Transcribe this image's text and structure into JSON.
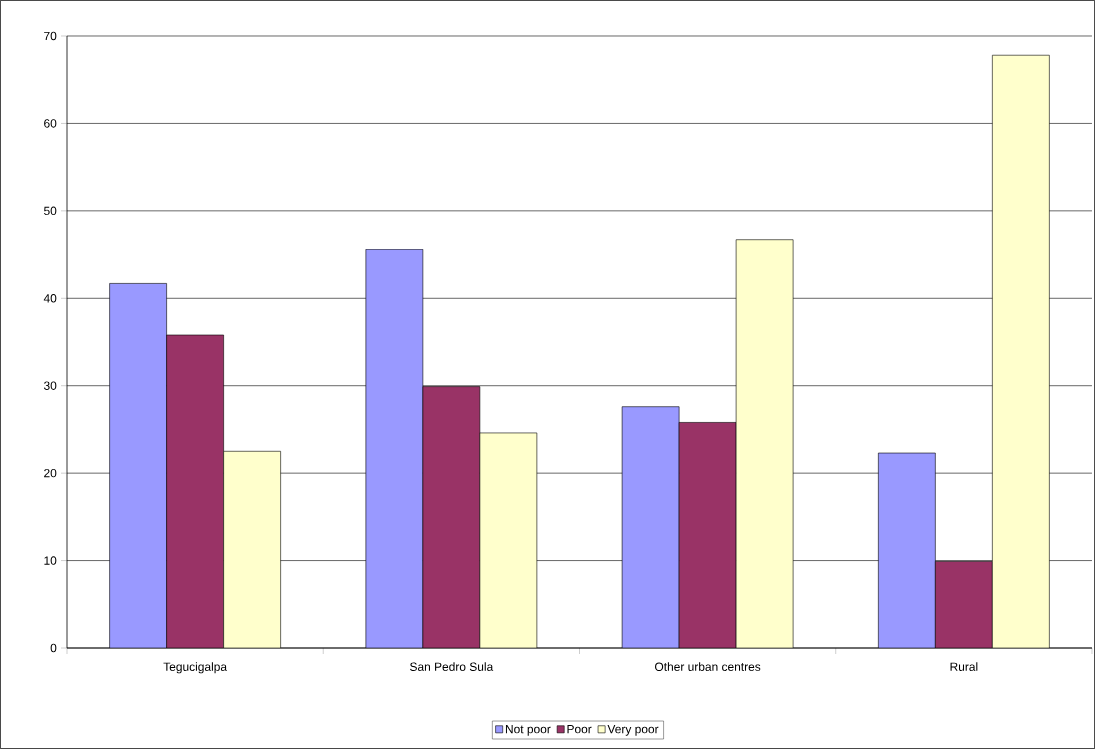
{
  "chart_data": {
    "type": "bar",
    "categories": [
      "Tegucigalpa",
      "San Pedro Sula",
      "Other urban centres",
      "Rural"
    ],
    "series": [
      {
        "name": "Not poor",
        "color": "#9999ff",
        "values": [
          41.7,
          45.6,
          27.6,
          22.3
        ]
      },
      {
        "name": "Poor",
        "color": "#993366",
        "values": [
          35.8,
          29.9,
          25.8,
          9.9
        ]
      },
      {
        "name": "Very poor",
        "color": "#ffffcc",
        "values": [
          22.5,
          24.6,
          46.7,
          67.8
        ]
      }
    ],
    "ylim": [
      0,
      70
    ],
    "yticks": [
      0,
      10,
      20,
      30,
      40,
      50,
      60,
      70
    ],
    "grid": "y",
    "legend": "bottom"
  }
}
